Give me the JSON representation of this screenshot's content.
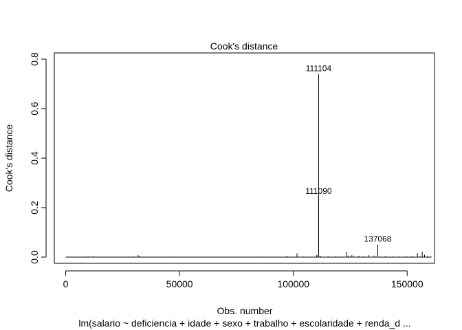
{
  "chart_data": {
    "type": "bar",
    "title": "Cook's distance",
    "xlabel": "Obs. number",
    "ylabel": "Cook's distance",
    "subtitle": "lm(salario ~ deficiencia + idade + sexo + trabalho + escolaridade + renda_d ...",
    "xlim": [
      -5000,
      162000
    ],
    "ylim": [
      -0.025,
      0.825
    ],
    "x_ticks": [
      0,
      50000,
      100000,
      150000
    ],
    "x_tick_labels": [
      "0",
      "50000",
      "100000",
      "150000"
    ],
    "y_ticks": [
      0.0,
      0.2,
      0.4,
      0.6,
      0.8
    ],
    "y_tick_labels": [
      "0.0",
      "0.2",
      "0.4",
      "0.6",
      "0.8"
    ],
    "grid": false,
    "spikes": [
      [
        1200,
        0.001
      ],
      [
        9800,
        0.003
      ],
      [
        11300,
        0.002
      ],
      [
        12400,
        0.004
      ],
      [
        29800,
        0.003
      ],
      [
        31800,
        0.008
      ],
      [
        32600,
        0.004
      ],
      [
        48200,
        0.002
      ],
      [
        86800,
        0.002
      ],
      [
        96800,
        0.002
      ],
      [
        97400,
        0.004
      ],
      [
        101600,
        0.015
      ],
      [
        104300,
        0.002
      ],
      [
        110300,
        0.009
      ],
      [
        111090,
        0.244
      ],
      [
        111104,
        0.74
      ],
      [
        111900,
        0.005
      ],
      [
        115200,
        0.003
      ],
      [
        116600,
        0.002
      ],
      [
        118600,
        0.004
      ],
      [
        121300,
        0.003
      ],
      [
        123500,
        0.022
      ],
      [
        124200,
        0.006
      ],
      [
        125700,
        0.008
      ],
      [
        126400,
        0.003
      ],
      [
        128700,
        0.005
      ],
      [
        130600,
        0.003
      ],
      [
        133200,
        0.008
      ],
      [
        135500,
        0.006
      ],
      [
        137068,
        0.051
      ],
      [
        138200,
        0.002
      ],
      [
        140400,
        0.004
      ],
      [
        143800,
        0.003
      ],
      [
        146700,
        0.002
      ],
      [
        149600,
        0.004
      ],
      [
        152200,
        0.005
      ],
      [
        154500,
        0.016
      ],
      [
        155600,
        0.003
      ],
      [
        156600,
        0.022
      ],
      [
        157600,
        0.01
      ],
      [
        159000,
        0.004
      ],
      [
        160600,
        0.002
      ]
    ],
    "labeled_points": [
      {
        "x": 111104,
        "y": 0.74,
        "label": "111104"
      },
      {
        "x": 111090,
        "y": 0.244,
        "label": "111090"
      },
      {
        "x": 137068,
        "y": 0.051,
        "label": "137068"
      }
    ],
    "baseline": {
      "from": 0,
      "to": 160600
    }
  }
}
